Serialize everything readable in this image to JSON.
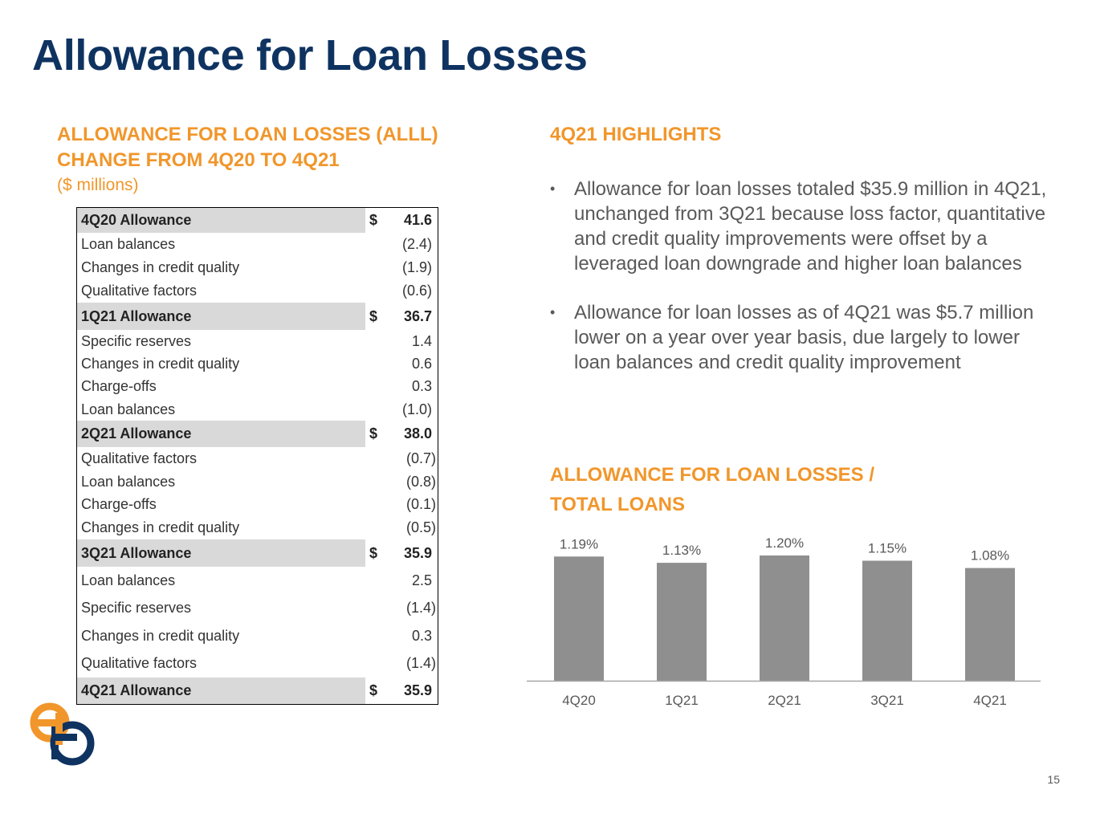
{
  "title": "Allowance for Loan Losses",
  "left_section": {
    "heading_lines": [
      "ALLOWANCE FOR LOAN LOSSES (ALLL)",
      "CHANGE FROM 4Q20 TO 4Q21"
    ],
    "units": "($ millions)"
  },
  "table": {
    "rows": [
      {
        "label": "4Q20 Allowance",
        "dollar": "$",
        "value": "41.6",
        "total": true
      },
      {
        "label": "Loan balances",
        "dollar": "",
        "value": "(2.4)",
        "total": false
      },
      {
        "label": "Changes in credit quality",
        "dollar": "",
        "value": "(1.9)",
        "total": false
      },
      {
        "label": "Qualitative factors",
        "dollar": "",
        "value": "(0.6)",
        "total": false
      },
      {
        "label": "1Q21 Allowance",
        "dollar": "$",
        "value": "36.7",
        "total": true
      },
      {
        "label": "Specific reserves",
        "dollar": "",
        "value": "1.4",
        "total": false
      },
      {
        "label": "Changes in credit quality",
        "dollar": "",
        "value": "0.6",
        "total": false
      },
      {
        "label": "Charge-offs",
        "dollar": "",
        "value": "0.3",
        "total": false
      },
      {
        "label": "Loan balances",
        "dollar": "",
        "value": "(1.0)",
        "total": false
      },
      {
        "label": "2Q21 Allowance",
        "dollar": "$",
        "value": "38.0",
        "total": true
      },
      {
        "label": "Qualitative factors",
        "dollar": "",
        "value": "(0.7)",
        "total": false
      },
      {
        "label": "Loan balances",
        "dollar": "",
        "value": "(0.8)",
        "total": false
      },
      {
        "label": "Charge-offs",
        "dollar": "",
        "value": "(0.1)",
        "total": false
      },
      {
        "label": "Changes in credit quality",
        "dollar": "",
        "value": "(0.5)",
        "total": false
      },
      {
        "label": "3Q21 Allowance",
        "dollar": "$",
        "value": "35.9",
        "total": true
      },
      {
        "label": "Loan balances",
        "dollar": "",
        "value": "2.5",
        "total": false
      },
      {
        "label": "Specific reserves",
        "dollar": "",
        "value": "(1.4)",
        "total": false
      },
      {
        "label": "Changes in credit quality",
        "dollar": "",
        "value": "0.3",
        "total": false
      },
      {
        "label": "Qualitative factors",
        "dollar": "",
        "value": "(1.4)",
        "total": false
      },
      {
        "label": "4Q21 Allowance",
        "dollar": "$",
        "value": "35.9",
        "total": true
      }
    ]
  },
  "highlights": {
    "heading": "4Q21 HIGHLIGHTS",
    "bullet_char": "•",
    "bullets": [
      "Allowance for loan losses totaled $35.9 million in 4Q21, unchanged from 3Q21 because loss factor, quantitative and credit quality improvements were offset by a leveraged loan downgrade and higher loan balances",
      "Allowance for loan losses as of 4Q21 was $5.7 million lower on a year over year basis, due largely to lower loan balances and credit quality improvement"
    ]
  },
  "chart_heading_lines": [
    "ALLOWANCE FOR LOAN LOSSES /",
    "TOTAL LOANS"
  ],
  "chart_data": {
    "type": "bar",
    "title": "ALLOWANCE FOR LOAN LOSSES / TOTAL LOANS",
    "categories": [
      "4Q20",
      "1Q21",
      "2Q21",
      "3Q21",
      "4Q21"
    ],
    "values": [
      1.19,
      1.13,
      1.2,
      1.15,
      1.08
    ],
    "labels": [
      "1.19%",
      "1.13%",
      "1.20%",
      "1.15%",
      "1.08%"
    ],
    "xlabel": "",
    "ylabel": "",
    "grid": false,
    "bar_color": "#8f8f8f"
  },
  "page_number": "15",
  "colors": {
    "title": "#0f3361",
    "accent": "#f1962b",
    "total_row_bg": "#d9d9d9",
    "logo_orange": "#f1962b",
    "logo_navy": "#0f3361"
  }
}
